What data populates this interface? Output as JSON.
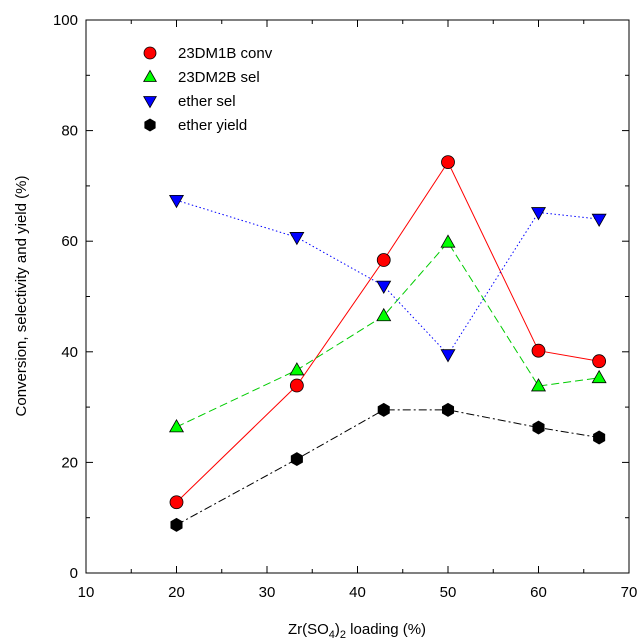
{
  "chart_data": {
    "type": "line",
    "xlabel_parts": [
      "Zr(SO",
      "4",
      ")",
      "2",
      " loading (%)"
    ],
    "ylabel": "Conversion, selectivity and yield (%)",
    "xlim": [
      10,
      70
    ],
    "ylim": [
      0,
      100
    ],
    "xticks": [
      "10",
      "20",
      "30",
      "40",
      "50",
      "60",
      "70"
    ],
    "yticks": [
      "0",
      "20",
      "40",
      "60",
      "80",
      "100"
    ],
    "grid": false,
    "legend_position": "top-left",
    "series": [
      {
        "name": "23DM1B conv",
        "marker": "circle",
        "color": "#ff0000",
        "line_color": "#ff0000",
        "dash": "solid",
        "x": [
          20,
          33.3,
          42.9,
          50,
          60,
          66.7
        ],
        "y": [
          12.8,
          33.9,
          56.6,
          74.3,
          40.2,
          38.3
        ]
      },
      {
        "name": "23DM2B sel",
        "marker": "triangle-up",
        "color": "#00ff00",
        "line_color": "#00cc00",
        "dash": "dashed",
        "x": [
          20,
          33.3,
          42.9,
          50,
          60,
          66.7
        ],
        "y": [
          26.4,
          36.7,
          46.5,
          59.8,
          33.8,
          35.3
        ]
      },
      {
        "name": "ether sel",
        "marker": "triangle-down",
        "color": "#0000ff",
        "line_color": "#0000ff",
        "dash": "dotted",
        "x": [
          20,
          33.3,
          42.9,
          50,
          60,
          66.7
        ],
        "y": [
          67.4,
          60.7,
          51.9,
          39.5,
          65.2,
          64.0
        ]
      },
      {
        "name": "ether yield",
        "marker": "hexagon",
        "color": "#000000",
        "line_color": "#000000",
        "dash": "dashdot",
        "x": [
          20,
          33.3,
          42.9,
          50,
          60,
          66.7
        ],
        "y": [
          8.7,
          20.6,
          29.5,
          29.5,
          26.3,
          24.5
        ]
      }
    ]
  }
}
